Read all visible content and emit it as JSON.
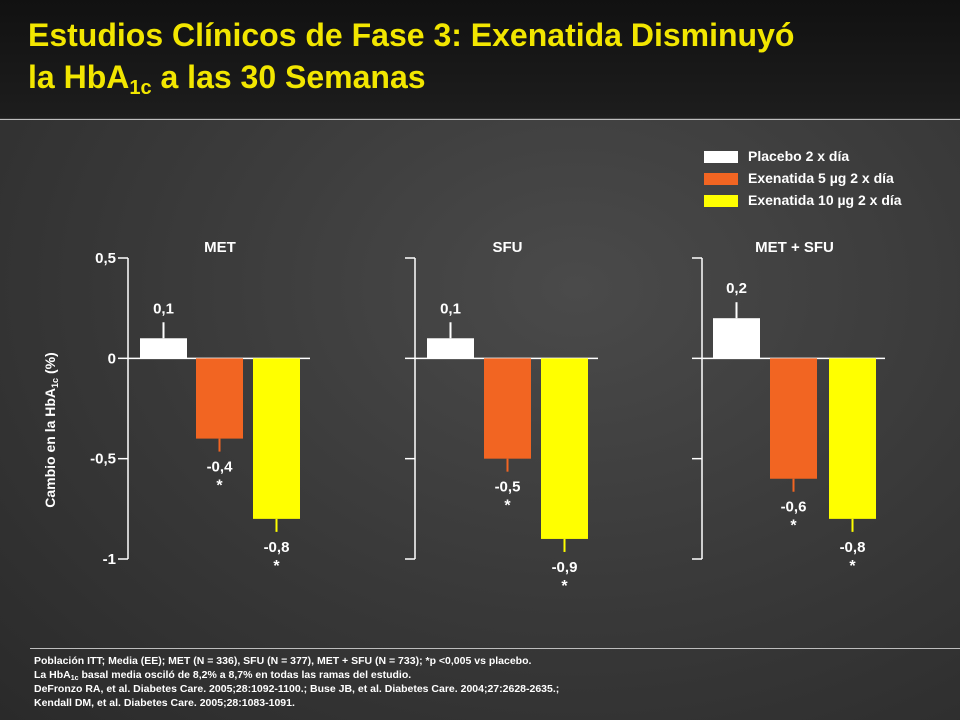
{
  "title": {
    "line1": "Estudios Clínicos de Fase 3: Exenatida Disminuyó",
    "line2_pre": "la HbA",
    "line2_sub": "1c",
    "line2_post": " a las 30 Semanas"
  },
  "colors": {
    "title": "#f2e600",
    "placebo": "#ffffff",
    "exenatida5": "#f26522",
    "exenatida10": "#ffff00",
    "axis": "#ffffff"
  },
  "legend": [
    {
      "label": "Placebo 2 x día",
      "color": "#ffffff"
    },
    {
      "label": "Exenatida 5 µg 2 x día",
      "color": "#f26522"
    },
    {
      "label": "Exenatida 10 µg 2 x día",
      "color": "#ffff00"
    }
  ],
  "ylabel": {
    "pre": "Cambio en la HbA",
    "sub": "1c",
    "post": " (%)"
  },
  "chart_data": {
    "type": "bar",
    "ylim": [
      -1,
      0.5
    ],
    "yticks": [
      0.5,
      0,
      -0.5,
      -1
    ],
    "ytick_labels": [
      "0,5",
      "0",
      "-0,5",
      "-1"
    ],
    "categories": [
      "MET",
      "SFU",
      "MET + SFU"
    ],
    "series": [
      {
        "name": "Placebo 2 x día",
        "values": [
          0.1,
          0.1,
          0.2
        ],
        "labels": [
          "0,1",
          "0,1",
          "0,2"
        ],
        "significant": [
          false,
          false,
          false
        ]
      },
      {
        "name": "Exenatida 5 µg 2 x día",
        "values": [
          -0.4,
          -0.5,
          -0.6
        ],
        "labels": [
          "-0,4",
          "-0,5",
          "-0,6"
        ],
        "significant": [
          true,
          true,
          true
        ]
      },
      {
        "name": "Exenatida 10 µg 2 x día",
        "values": [
          -0.8,
          -0.9,
          -0.8
        ],
        "labels": [
          "-0,8",
          "-0,9",
          "-0,8"
        ],
        "significant": [
          true,
          true,
          true
        ]
      }
    ],
    "significance_marker": "*",
    "legend_position": "top-right",
    "grid": false
  },
  "footer": {
    "line1": "Población ITT; Media (EE); MET (N = 336), SFU (N = 377), MET + SFU (N = 733); *p <0,005 vs placebo.",
    "line2_pre": "La HbA",
    "line2_sub": "1c",
    "line2_post": " basal media osciló de 8,2% a 8,7% en todas las ramas del estudio.",
    "line3": "DeFronzo RA, et al. Diabetes Care. 2005;28:1092-1100.; Buse JB, et al. Diabetes Care. 2004;27:2628-2635.;",
    "line4": "Kendall DM, et al. Diabetes Care. 2005;28:1083-1091."
  }
}
